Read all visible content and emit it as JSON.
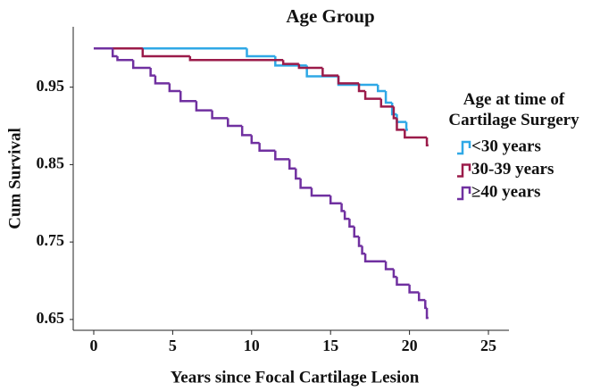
{
  "chart_data": {
    "type": "step",
    "title": "Age Group",
    "x_label": "Years since Focal Cartilage Lesion",
    "y_label": "Cum Survival",
    "legend_title": "Age at time of Cartilage Surgery",
    "xlim": [
      -1.3,
      26.3
    ],
    "xticks": [
      0,
      5,
      10,
      15,
      20,
      25
    ],
    "ylim": [
      0.636,
      1.028
    ],
    "yticks": [
      0.65,
      0.75,
      0.85,
      0.95
    ],
    "series": [
      {
        "name": "<30 years",
        "color": "#2fa8e6",
        "x": [
          0,
          9.7,
          11.5,
          13.5,
          15.5,
          18.0,
          18.5,
          18.9,
          19.2,
          19.8,
          19.9
        ],
        "values": [
          1.0,
          0.99,
          0.978,
          0.964,
          0.953,
          0.945,
          0.93,
          0.915,
          0.905,
          0.895,
          0.895
        ]
      },
      {
        "name": "30-39 years",
        "color": "#9b1b4a",
        "x": [
          0,
          3.1,
          6.1,
          12.0,
          13.0,
          14.5,
          15.5,
          16.8,
          17.2,
          18.2,
          19.0,
          19.2,
          19.7,
          21.1,
          21.2
        ],
        "values": [
          1.0,
          0.99,
          0.985,
          0.98,
          0.975,
          0.965,
          0.955,
          0.945,
          0.935,
          0.925,
          0.91,
          0.895,
          0.885,
          0.875,
          0.875
        ]
      },
      {
        "name": "≥40 years",
        "color": "#7030a0",
        "x": [
          0,
          1.2,
          1.5,
          2.5,
          3.6,
          3.9,
          4.8,
          5.5,
          6.5,
          7.5,
          8.5,
          9.4,
          10.0,
          10.5,
          11.5,
          12.4,
          12.8,
          13.1,
          13.8,
          15.0,
          15.7,
          15.9,
          16.2,
          16.5,
          16.8,
          17.0,
          17.2,
          18.5,
          19.0,
          19.2,
          20.0,
          20.6,
          21.0,
          21.1,
          21.2
        ],
        "values": [
          1.0,
          0.99,
          0.985,
          0.975,
          0.965,
          0.955,
          0.945,
          0.932,
          0.92,
          0.91,
          0.9,
          0.888,
          0.878,
          0.868,
          0.857,
          0.845,
          0.832,
          0.82,
          0.81,
          0.8,
          0.79,
          0.78,
          0.77,
          0.757,
          0.745,
          0.735,
          0.725,
          0.715,
          0.705,
          0.695,
          0.685,
          0.675,
          0.665,
          0.652,
          0.652
        ]
      }
    ]
  }
}
